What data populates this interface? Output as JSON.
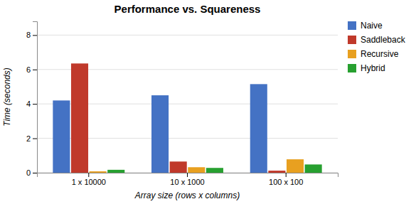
{
  "chart_data": {
    "type": "bar",
    "title": "Performance vs. Squareness",
    "xlabel": "Array size (rows x columns)",
    "ylabel": "Time (seconds)",
    "categories": [
      "1 x 10000",
      "10 x 1000",
      "100 x 100"
    ],
    "series": [
      {
        "name": "Naive",
        "color": "#4472C4",
        "values": [
          4.2,
          4.5,
          5.15
        ]
      },
      {
        "name": "Saddleback",
        "color": "#C0392B",
        "values": [
          6.35,
          0.65,
          0.12
        ]
      },
      {
        "name": "Recursive",
        "color": "#E8A020",
        "values": [
          0.08,
          0.32,
          0.78
        ]
      },
      {
        "name": "Hybrid",
        "color": "#27A030",
        "values": [
          0.17,
          0.28,
          0.48
        ]
      }
    ],
    "ylim": [
      0,
      8.8
    ],
    "yticks": [
      0,
      2,
      4,
      6,
      8
    ],
    "grid": true,
    "legend": "right"
  }
}
